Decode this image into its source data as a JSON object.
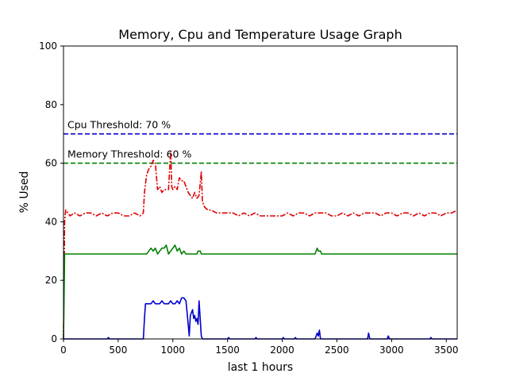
{
  "chart_data": {
    "type": "line",
    "title": "Memory, Cpu and Temperature Usage Graph",
    "xlabel": "last 1 hours",
    "ylabel": "% Used",
    "xlim": [
      0,
      3600
    ],
    "ylim": [
      0,
      100
    ],
    "xticks": [
      0,
      500,
      1000,
      1500,
      2000,
      2500,
      3000,
      3500
    ],
    "yticks": [
      0,
      20,
      40,
      60,
      80,
      100
    ],
    "grid": false,
    "thresholds": [
      {
        "label": "Cpu Threshold: 70 %",
        "value": 70,
        "color": "#0000cc",
        "style": "dashed"
      },
      {
        "label": "Memory Threshold: 60 %",
        "value": 60,
        "color": "#008000",
        "style": "dashed"
      }
    ],
    "series": [
      {
        "color": "#dd0000",
        "style": "dashdot",
        "points": [
          [
            0,
            0
          ],
          [
            10,
            40
          ],
          [
            20,
            44
          ],
          [
            60,
            42
          ],
          [
            100,
            43
          ],
          [
            150,
            42
          ],
          [
            200,
            43
          ],
          [
            250,
            43
          ],
          [
            300,
            42
          ],
          [
            350,
            43
          ],
          [
            400,
            42
          ],
          [
            450,
            43
          ],
          [
            500,
            43
          ],
          [
            550,
            42
          ],
          [
            600,
            42
          ],
          [
            650,
            43
          ],
          [
            700,
            42
          ],
          [
            730,
            43
          ],
          [
            740,
            50
          ],
          [
            760,
            56
          ],
          [
            780,
            58
          ],
          [
            800,
            59
          ],
          [
            820,
            61
          ],
          [
            840,
            60
          ],
          [
            860,
            51
          ],
          [
            880,
            52
          ],
          [
            900,
            50
          ],
          [
            920,
            51
          ],
          [
            940,
            51
          ],
          [
            960,
            51
          ],
          [
            980,
            64
          ],
          [
            990,
            52
          ],
          [
            1000,
            51
          ],
          [
            1020,
            52
          ],
          [
            1040,
            51
          ],
          [
            1060,
            55
          ],
          [
            1080,
            54
          ],
          [
            1100,
            54
          ],
          [
            1120,
            52
          ],
          [
            1140,
            50
          ],
          [
            1160,
            49
          ],
          [
            1180,
            48
          ],
          [
            1200,
            50
          ],
          [
            1220,
            48
          ],
          [
            1240,
            49
          ],
          [
            1260,
            57
          ],
          [
            1270,
            47
          ],
          [
            1290,
            45
          ],
          [
            1320,
            44
          ],
          [
            1350,
            44
          ],
          [
            1400,
            43
          ],
          [
            1450,
            43
          ],
          [
            1500,
            43
          ],
          [
            1550,
            43
          ],
          [
            1600,
            42
          ],
          [
            1650,
            43
          ],
          [
            1700,
            42
          ],
          [
            1750,
            43
          ],
          [
            1800,
            42
          ],
          [
            1850,
            42
          ],
          [
            1900,
            42
          ],
          [
            1950,
            42
          ],
          [
            2000,
            42
          ],
          [
            2050,
            43
          ],
          [
            2100,
            42
          ],
          [
            2150,
            43
          ],
          [
            2200,
            43
          ],
          [
            2250,
            42
          ],
          [
            2300,
            43
          ],
          [
            2350,
            43
          ],
          [
            2400,
            43
          ],
          [
            2450,
            42
          ],
          [
            2500,
            42
          ],
          [
            2550,
            43
          ],
          [
            2600,
            42
          ],
          [
            2650,
            43
          ],
          [
            2700,
            42
          ],
          [
            2750,
            43
          ],
          [
            2800,
            43
          ],
          [
            2850,
            43
          ],
          [
            2900,
            42
          ],
          [
            2950,
            43
          ],
          [
            3000,
            43
          ],
          [
            3050,
            42
          ],
          [
            3100,
            43
          ],
          [
            3150,
            43
          ],
          [
            3200,
            42
          ],
          [
            3250,
            43
          ],
          [
            3300,
            42
          ],
          [
            3350,
            43
          ],
          [
            3400,
            43
          ],
          [
            3450,
            42
          ],
          [
            3500,
            43
          ],
          [
            3550,
            43
          ],
          [
            3600,
            44
          ]
        ]
      },
      {
        "color": "#008000",
        "style": "solid",
        "points": [
          [
            0,
            0
          ],
          [
            10,
            29
          ],
          [
            100,
            29
          ],
          [
            200,
            29
          ],
          [
            300,
            29
          ],
          [
            400,
            29
          ],
          [
            500,
            29
          ],
          [
            600,
            29
          ],
          [
            700,
            29
          ],
          [
            760,
            29
          ],
          [
            780,
            30
          ],
          [
            800,
            31
          ],
          [
            820,
            30
          ],
          [
            840,
            31
          ],
          [
            860,
            29
          ],
          [
            880,
            30
          ],
          [
            900,
            31
          ],
          [
            920,
            31
          ],
          [
            940,
            32
          ],
          [
            960,
            29
          ],
          [
            980,
            30
          ],
          [
            1000,
            31
          ],
          [
            1020,
            32
          ],
          [
            1040,
            30
          ],
          [
            1060,
            31
          ],
          [
            1080,
            29
          ],
          [
            1100,
            30
          ],
          [
            1120,
            29
          ],
          [
            1140,
            29
          ],
          [
            1200,
            29
          ],
          [
            1220,
            29
          ],
          [
            1230,
            30
          ],
          [
            1250,
            30
          ],
          [
            1260,
            29
          ],
          [
            1400,
            29
          ],
          [
            1600,
            29
          ],
          [
            1800,
            29
          ],
          [
            2000,
            29
          ],
          [
            2200,
            29
          ],
          [
            2300,
            29
          ],
          [
            2320,
            31
          ],
          [
            2330,
            30
          ],
          [
            2350,
            30
          ],
          [
            2360,
            29
          ],
          [
            2500,
            29
          ],
          [
            2700,
            29
          ],
          [
            2900,
            29
          ],
          [
            3100,
            29
          ],
          [
            3300,
            29
          ],
          [
            3500,
            29
          ],
          [
            3600,
            29
          ]
        ]
      },
      {
        "color": "#0000cc",
        "style": "solid",
        "points": [
          [
            0,
            0
          ],
          [
            400,
            0
          ],
          [
            410,
            0.5
          ],
          [
            420,
            0
          ],
          [
            700,
            0
          ],
          [
            730,
            0
          ],
          [
            740,
            7
          ],
          [
            750,
            12
          ],
          [
            780,
            12
          ],
          [
            800,
            12
          ],
          [
            820,
            13
          ],
          [
            840,
            12
          ],
          [
            860,
            12
          ],
          [
            880,
            12
          ],
          [
            900,
            13
          ],
          [
            920,
            12
          ],
          [
            940,
            12
          ],
          [
            960,
            12
          ],
          [
            980,
            13
          ],
          [
            1000,
            12
          ],
          [
            1020,
            12
          ],
          [
            1040,
            13
          ],
          [
            1060,
            12
          ],
          [
            1080,
            14
          ],
          [
            1100,
            14
          ],
          [
            1120,
            13
          ],
          [
            1140,
            5
          ],
          [
            1150,
            1
          ],
          [
            1160,
            8
          ],
          [
            1180,
            10
          ],
          [
            1190,
            7
          ],
          [
            1200,
            8
          ],
          [
            1210,
            6
          ],
          [
            1220,
            7
          ],
          [
            1230,
            5
          ],
          [
            1240,
            13
          ],
          [
            1250,
            7
          ],
          [
            1260,
            1
          ],
          [
            1270,
            0
          ],
          [
            1500,
            0
          ],
          [
            1510,
            0.5
          ],
          [
            1520,
            0
          ],
          [
            1750,
            0
          ],
          [
            1760,
            0.5
          ],
          [
            1770,
            0
          ],
          [
            2000,
            0
          ],
          [
            2010,
            0.5
          ],
          [
            2020,
            0
          ],
          [
            2110,
            0
          ],
          [
            2120,
            0.5
          ],
          [
            2130,
            0
          ],
          [
            2300,
            0
          ],
          [
            2310,
            1
          ],
          [
            2320,
            2
          ],
          [
            2330,
            1
          ],
          [
            2340,
            3
          ],
          [
            2350,
            0
          ],
          [
            2780,
            0
          ],
          [
            2790,
            2
          ],
          [
            2800,
            0
          ],
          [
            2960,
            0
          ],
          [
            2970,
            1
          ],
          [
            2980,
            0
          ],
          [
            3350,
            0
          ],
          [
            3360,
            0.5
          ],
          [
            3370,
            0
          ],
          [
            3600,
            0
          ]
        ]
      }
    ]
  }
}
